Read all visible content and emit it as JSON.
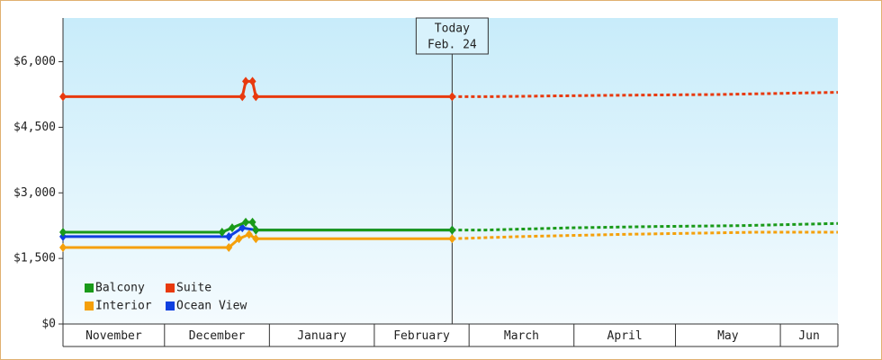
{
  "chart_data": {
    "type": "line",
    "categories": [
      "November",
      "December",
      "January",
      "February",
      "March",
      "April",
      "May",
      "Jun"
    ],
    "category_edges": [
      0,
      30,
      61,
      92,
      120,
      151,
      181,
      212,
      229
    ],
    "xlim": [
      0,
      229
    ],
    "ylim": [
      0,
      7000
    ],
    "yticks": [
      {
        "value": 0,
        "label": "$0"
      },
      {
        "value": 1500,
        "label": "$1,500"
      },
      {
        "value": 3000,
        "label": "$3,000"
      },
      {
        "value": 4500,
        "label": "$4,500"
      },
      {
        "value": 6000,
        "label": "$6,000"
      }
    ],
    "today": {
      "label": "Today",
      "date": "Feb. 24",
      "x": 115
    },
    "legend": "lower left",
    "series": [
      {
        "name": "Balcony",
        "color": "#1a9a1a",
        "x": [
          0,
          47,
          50,
          54,
          56,
          57,
          115
        ],
        "values": [
          2100,
          2100,
          2200,
          2330,
          2330,
          2150,
          2150
        ],
        "forecast_x": [
          115,
          125,
          150,
          175,
          200,
          229
        ],
        "forecast_values": [
          2150,
          2150,
          2200,
          2230,
          2250,
          2300
        ]
      },
      {
        "name": "Suite",
        "color": "#e83a0e",
        "x": [
          0,
          53,
          54,
          56,
          57,
          115
        ],
        "values": [
          5200,
          5200,
          5550,
          5550,
          5200,
          5200
        ],
        "forecast_x": [
          115,
          125,
          160,
          194,
          215,
          229
        ],
        "forecast_values": [
          5200,
          5200,
          5230,
          5250,
          5280,
          5300
        ]
      },
      {
        "name": "Interior",
        "color": "#f5a00a",
        "x": [
          0,
          49,
          52,
          55,
          57,
          115
        ],
        "values": [
          1750,
          1750,
          1950,
          2050,
          1950,
          1950
        ],
        "forecast_x": [
          115,
          135,
          165,
          205,
          229
        ],
        "forecast_values": [
          1950,
          2000,
          2050,
          2100,
          2100
        ]
      },
      {
        "name": "Ocean View",
        "color": "#1040e0",
        "x": [
          0,
          49,
          53,
          57,
          115
        ],
        "values": [
          2000,
          2000,
          2200,
          2150,
          2150
        ],
        "forecast_x": [],
        "forecast_values": []
      }
    ]
  }
}
